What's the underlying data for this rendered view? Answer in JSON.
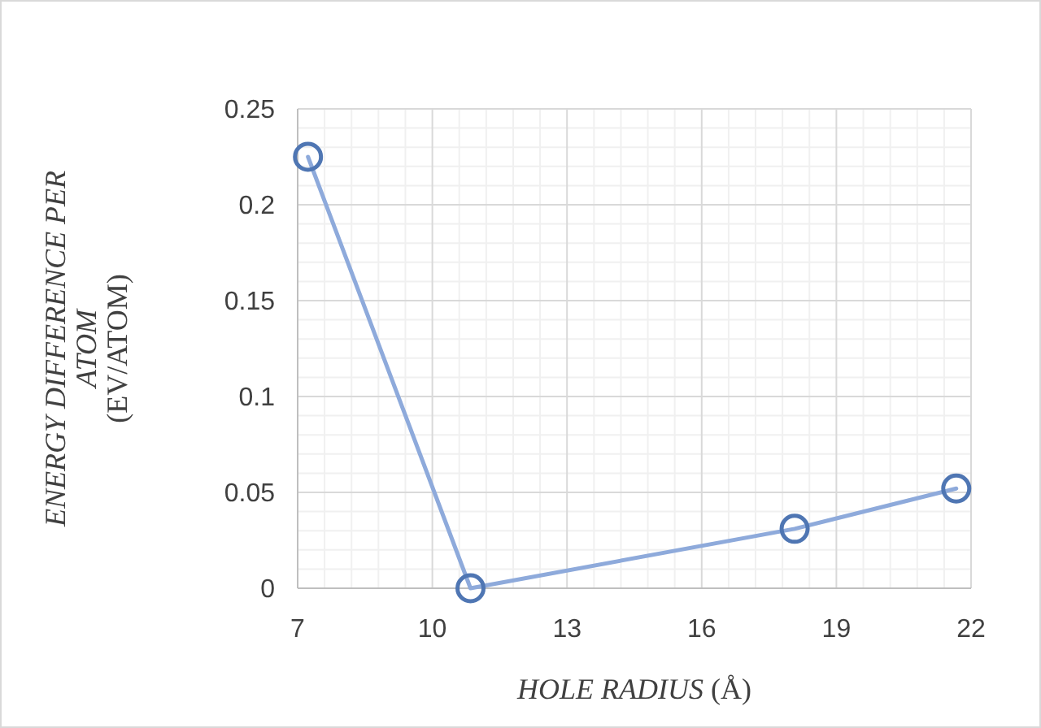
{
  "chart_data": {
    "type": "line",
    "xlabel": "HOLE RADIUS (Å)",
    "ylabel": "ENERGY DIFFERENCE PER ATOM (EV/ATOM)",
    "x": [
      7.23,
      10.85,
      18.07,
      21.67
    ],
    "series": [
      {
        "color": "#8eaadb",
        "values": [
          0.225,
          0,
          0.031,
          0.052
        ]
      }
    ],
    "xlim": [
      7,
      22
    ],
    "xticks": [
      7,
      10,
      13,
      16,
      19,
      22
    ],
    "ylim": [
      0,
      0.25
    ],
    "yticks": [
      0,
      0.05,
      0.1,
      0.15,
      0.2,
      0.25
    ],
    "grid": true,
    "marker": "circle",
    "line_style": "solid"
  }
}
